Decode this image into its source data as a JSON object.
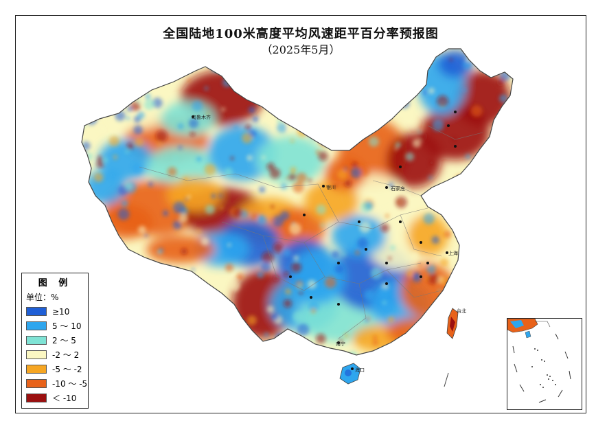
{
  "title": "全国陆地100米高度平均风速距平百分率预报图",
  "subtitle": "（2025年5月）",
  "legend": {
    "heading": "图 例",
    "unit_label": "单位：%",
    "classes": [
      {
        "label": "≥10",
        "color": "#1f5fd6"
      },
      {
        "label": "5 ～ 10",
        "color": "#2ea6ee"
      },
      {
        "label": "2 ～ 5",
        "color": "#7fe3d5"
      },
      {
        "label": "-2 ～ 2",
        "color": "#fbf7c2"
      },
      {
        "label": "-5 ～ -2",
        "color": "#f6a623"
      },
      {
        "label": "-10 ～ -5",
        "color": "#e8621a"
      },
      {
        "label": "＜ -10",
        "color": "#9b1010"
      }
    ]
  },
  "city_labels": {
    "urumqi": "乌鲁木齐",
    "yinchuan": "银川",
    "shijiazhuang": "石家庄",
    "shanghai": "上海",
    "taibei": "台北",
    "nanning": "南宁",
    "haikou": "海口"
  }
}
